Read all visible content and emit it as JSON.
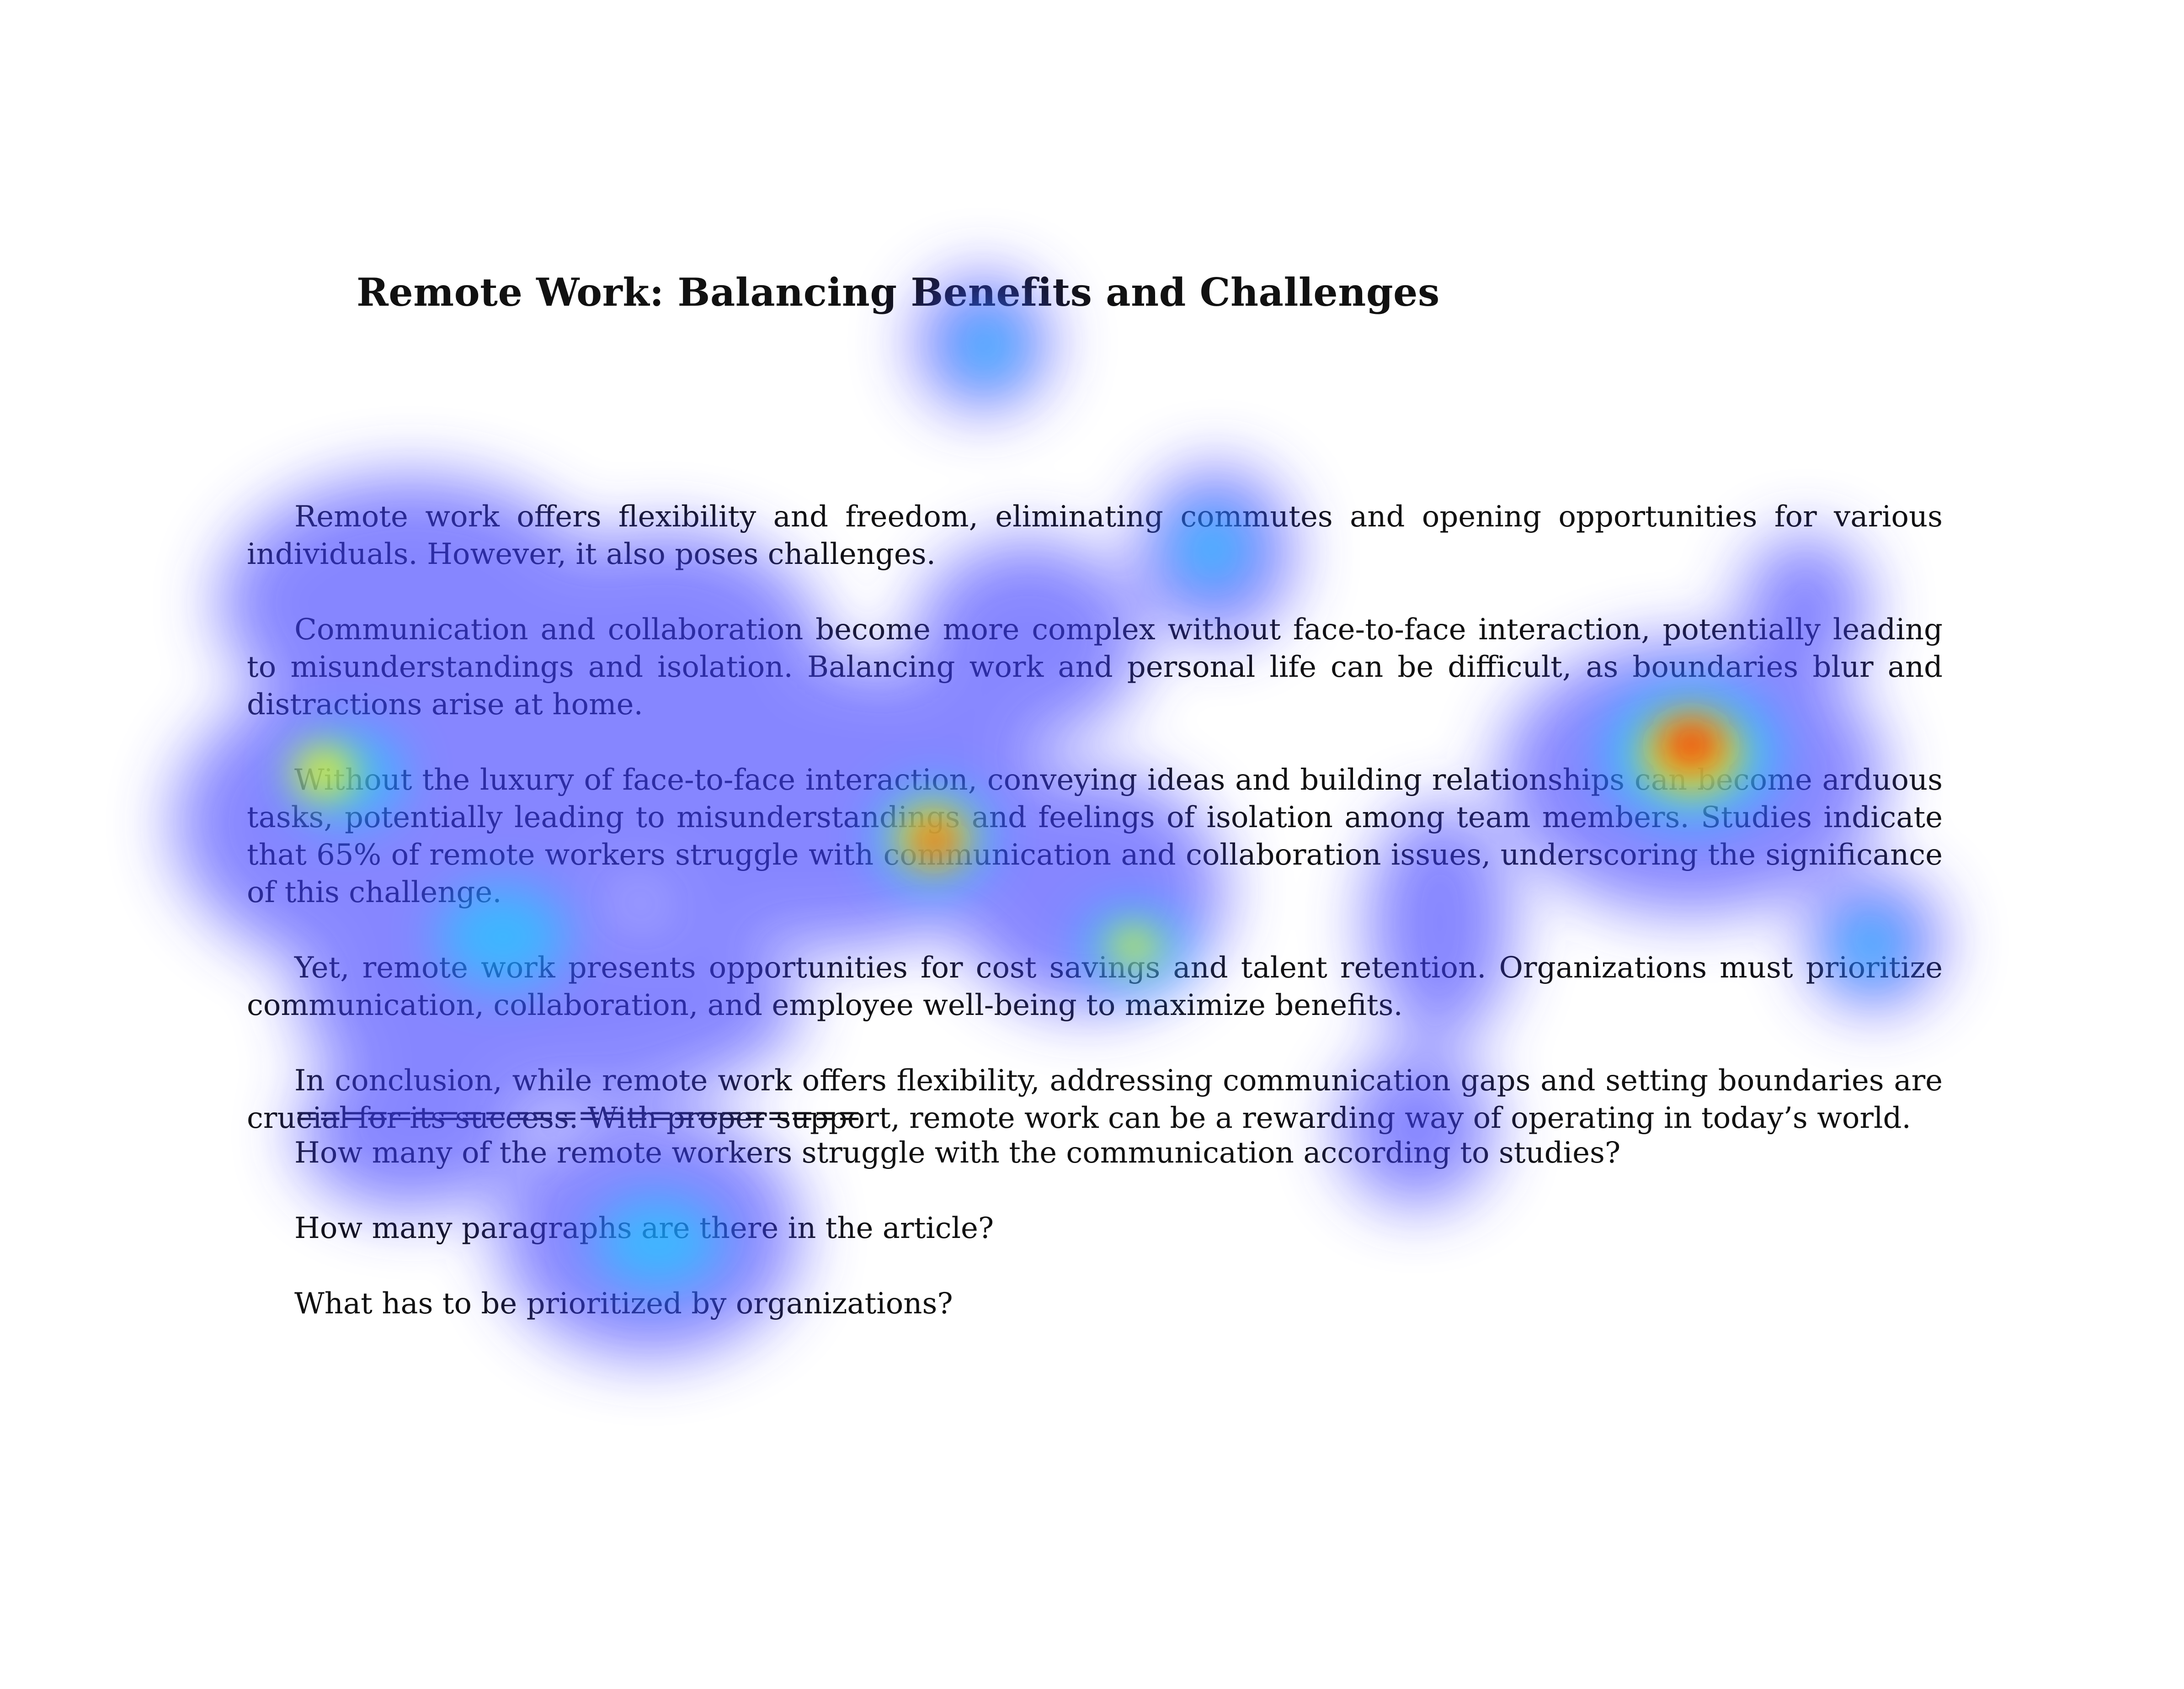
{
  "document": {
    "title": "Remote Work: Balancing Benefits and Challenges",
    "paragraphs": [
      "Remote work offers flexibility and freedom, eliminating commutes and opening opportunities for various individuals. However, it also poses challenges.",
      "Communication and collaboration become more complex without face-to-face interaction, potentially leading to misunderstandings and isolation. Balancing work and personal life can be difficult, as boundaries blur and distractions arise at home.",
      "Without the luxury of face-to-face interaction, conveying ideas and building relationships can become arduous tasks, potentially leading to misunderstandings and feelings of isolation among team members. Studies indicate that 65% of remote workers struggle with communication and collaboration issues, underscoring the significance of this challenge.",
      "Yet, remote work presents opportunities for cost savings and talent retention. Organizations must prioritize communication, collaboration, and employee well-being to maximize benefits.",
      "In conclusion, while remote work offers flexibility, addressing communication gaps and setting boundaries are crucial for its success. With proper support, remote work can be a rewarding way of operating in today’s world."
    ],
    "separator": "========================",
    "questions": [
      "How many of the remote workers struggle with the communication according to studies?",
      "How many paragraphs are there in the article?",
      "What has to be prioritized by organizations?"
    ]
  },
  "heatmap": {
    "colors": {
      "low": "#3c3cff",
      "mid": "#00e0ff",
      "high": "#ffff00",
      "peak": "#ff2000"
    }
  }
}
